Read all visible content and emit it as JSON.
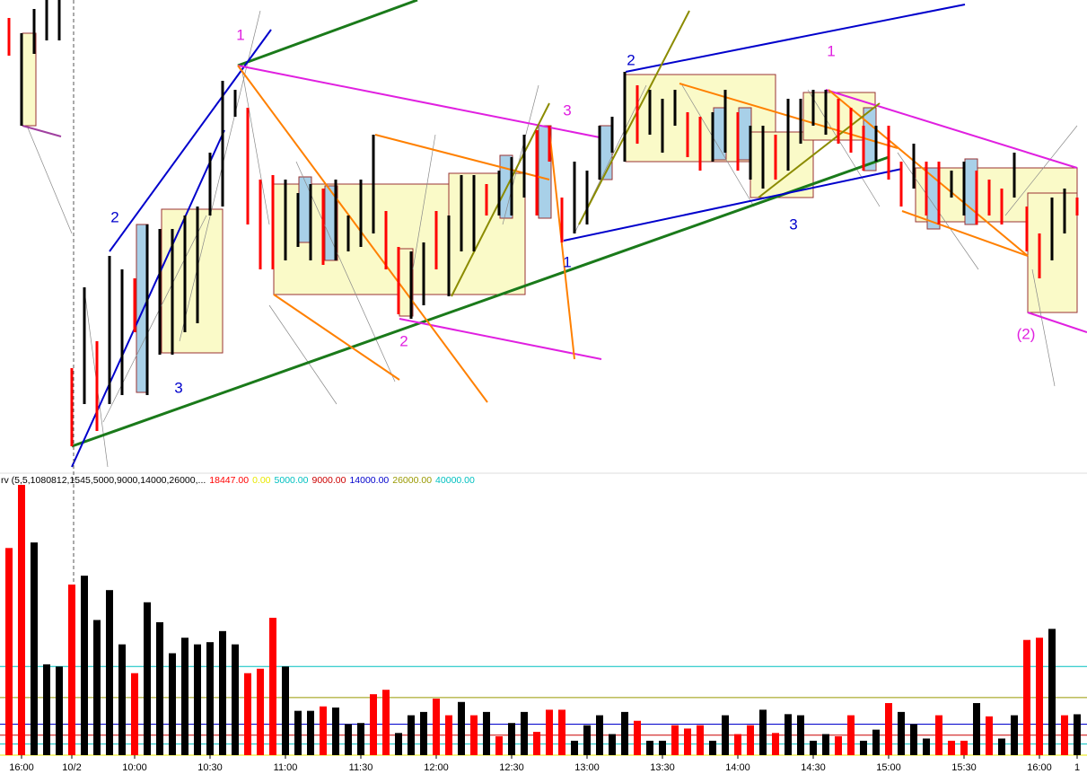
{
  "chart_data": [
    {
      "type": "ohlc",
      "ylim": [
        0,
        520
      ],
      "high": [
        500,
        483,
        510,
        520,
        520,
        110,
        200,
        140,
        235,
        220,
        210,
        270,
        265,
        265,
        280,
        290,
        350,
        430,
        420,
        400,
        320,
        325,
        320,
        305,
        315,
        310,
        320,
        280,
        320,
        370,
        285,
        245,
        240,
        250,
        285,
        280,
        325,
        325,
        315,
        330,
        345,
        370,
        375,
        380,
        300,
        340,
        330,
        380,
        390,
        440,
        425,
        420,
        410,
        420,
        395,
        390,
        395,
        420,
        395,
        380,
        380,
        370,
        410,
        410,
        420,
        420,
        410,
        400,
        380,
        380,
        380,
        340,
        360,
        340,
        340,
        330,
        340,
        330,
        320,
        310,
        350,
        290,
        260,
        300,
        310,
        300
      ],
      "low": [
        458,
        380,
        460,
        475,
        475,
        23,
        70,
        40,
        70,
        80,
        150,
        80,
        125,
        125,
        150,
        160,
        280,
        290,
        390,
        270,
        220,
        220,
        230,
        245,
        230,
        225,
        230,
        240,
        245,
        260,
        220,
        170,
        165,
        180,
        220,
        190,
        240,
        240,
        280,
        280,
        280,
        300,
        280,
        340,
        250,
        260,
        270,
        320,
        350,
        340,
        360,
        370,
        350,
        380,
        345,
        330,
        340,
        350,
        330,
        320,
        310,
        320,
        330,
        360,
        380,
        370,
        360,
        350,
        330,
        340,
        320,
        290,
        310,
        280,
        270,
        300,
        280,
        270,
        280,
        270,
        300,
        240,
        210,
        230,
        260,
        280
      ],
      "colors": [
        "#f00",
        "#000",
        "#000",
        "#000",
        "#000",
        "#f00",
        "#000",
        "#f00",
        "#000",
        "#000",
        "#f00",
        "#000",
        "#000",
        "#000",
        "#000",
        "#000",
        "#000",
        "#000",
        "#000",
        "#f00",
        "#f00",
        "#f00",
        "#000",
        "#000",
        "#000",
        "#f00",
        "#000",
        "#000",
        "#000",
        "#000",
        "#f00",
        "#f00",
        "#000",
        "#000",
        "#f00",
        "#000",
        "#000",
        "#000",
        "#f00",
        "#000",
        "#000",
        "#000",
        "#f00",
        "#f00",
        "#f00",
        "#000",
        "#000",
        "#000",
        "#000",
        "#000",
        "#f00",
        "#000",
        "#000",
        "#000",
        "#f00",
        "#f00",
        "#000",
        "#000",
        "#f00",
        "#000",
        "#000",
        "#f00",
        "#000",
        "#000",
        "#000",
        "#000",
        "#f00",
        "#f00",
        "#f00",
        "#000",
        "#f00",
        "#f00",
        "#000",
        "#f00",
        "#f00",
        "#000",
        "#000",
        "#f00",
        "#f00",
        "#f00",
        "#000",
        "#f00",
        "#f00",
        "#000",
        "#000",
        "#f00"
      ],
      "annotations": [
        {
          "text": "1",
          "color": "#e020e0"
        },
        {
          "text": "2",
          "color": "#0000cc"
        },
        {
          "text": "3",
          "color": "#0000cc"
        },
        {
          "text": "2",
          "color": "#e020e0"
        },
        {
          "text": "3",
          "color": "#e020e0"
        },
        {
          "text": "1",
          "color": "#0000cc"
        },
        {
          "text": "2",
          "color": "#0000cc"
        },
        {
          "text": "1",
          "color": "#e020e0"
        },
        {
          "text": "3",
          "color": "#0000cc"
        },
        {
          "text": "(2)",
          "color": "#e020e0"
        }
      ]
    },
    {
      "type": "bar",
      "title": "rv (5,5,1080812,1545,5000,9000,14000,26000,...",
      "current": {
        "value": 18447,
        "label": "18447.00",
        "color": "#ff0000"
      },
      "levels": [
        {
          "value": 0,
          "label": "0.00",
          "color": "#e8e800"
        },
        {
          "value": 5000,
          "label": "5000.00",
          "color": "#00c0c0"
        },
        {
          "value": 9000,
          "label": "9000.00",
          "color": "#cc0000"
        },
        {
          "value": 14000,
          "label": "14000.00",
          "color": "#0000cc"
        },
        {
          "value": 26000,
          "label": "26000.00",
          "color": "#999900"
        },
        {
          "value": 40000,
          "label": "40000.00",
          "color": "#00c0c0"
        }
      ],
      "ylim": [
        0,
        122000
      ],
      "categories": [
        null,
        "16:00",
        null,
        null,
        null,
        "10/2",
        null,
        null,
        null,
        null,
        "10:00",
        null,
        null,
        null,
        null,
        null,
        "10:30",
        null,
        null,
        null,
        null,
        null,
        "11:00",
        null,
        null,
        null,
        null,
        null,
        "11:30",
        null,
        null,
        null,
        null,
        null,
        "12:00",
        null,
        null,
        null,
        null,
        null,
        "12:30",
        null,
        null,
        null,
        null,
        null,
        "13:00",
        null,
        null,
        null,
        null,
        null,
        "13:30",
        null,
        null,
        null,
        null,
        null,
        "14:00",
        null,
        null,
        null,
        null,
        null,
        "14:30",
        null,
        null,
        null,
        null,
        null,
        "15:00",
        null,
        null,
        null,
        null,
        null,
        "15:30",
        null,
        null,
        null,
        null,
        null,
        "16:00",
        null,
        null,
        "1"
      ],
      "values": [
        93500,
        122000,
        96000,
        41000,
        40000,
        77000,
        81000,
        61000,
        74500,
        50000,
        37000,
        69000,
        60000,
        46000,
        53000,
        50000,
        51000,
        56000,
        50000,
        37000,
        39000,
        62000,
        40000,
        20000,
        20000,
        22000,
        21500,
        14000,
        14500,
        27500,
        29500,
        10000,
        18000,
        19500,
        25500,
        18000,
        24000,
        18000,
        19500,
        8500,
        14500,
        19500,
        10500,
        20500,
        20500,
        6500,
        13500,
        18000,
        9500,
        19500,
        15500,
        6500,
        6500,
        13500,
        12000,
        13500,
        6500,
        18000,
        9500,
        13500,
        20500,
        10000,
        18500,
        18000,
        6500,
        9500,
        8500,
        18000,
        6500,
        11500,
        23500,
        19500,
        14000,
        7500,
        18000,
        6500,
        6500,
        23500,
        17500,
        7500,
        18000,
        52000,
        53000,
        57000,
        18000,
        18447
      ],
      "colors": [
        "#f00",
        "#f00",
        "#000",
        "#000",
        "#000",
        "#f00",
        "#000",
        "#000",
        "#000",
        "#000",
        "#f00",
        "#000",
        "#000",
        "#000",
        "#000",
        "#000",
        "#000",
        "#000",
        "#000",
        "#f00",
        "#f00",
        "#f00",
        "#000",
        "#000",
        "#000",
        "#f00",
        "#000",
        "#000",
        "#000",
        "#f00",
        "#f00",
        "#000",
        "#000",
        "#000",
        "#f00",
        "#f00",
        "#000",
        "#f00",
        "#000",
        "#f00",
        "#000",
        "#000",
        "#f00",
        "#f00",
        "#f00",
        "#000",
        "#000",
        "#000",
        "#000",
        "#000",
        "#f00",
        "#000",
        "#000",
        "#f00",
        "#f00",
        "#f00",
        "#000",
        "#000",
        "#f00",
        "#f00",
        "#000",
        "#f00",
        "#000",
        "#000",
        "#000",
        "#000",
        "#f00",
        "#f00",
        "#000",
        "#000",
        "#f00",
        "#000",
        "#000",
        "#000",
        "#f00",
        "#f00",
        "#f00",
        "#000",
        "#f00",
        "#000",
        "#000",
        "#f00",
        "#f00",
        "#000",
        "#f00",
        "#000"
      ]
    }
  ]
}
